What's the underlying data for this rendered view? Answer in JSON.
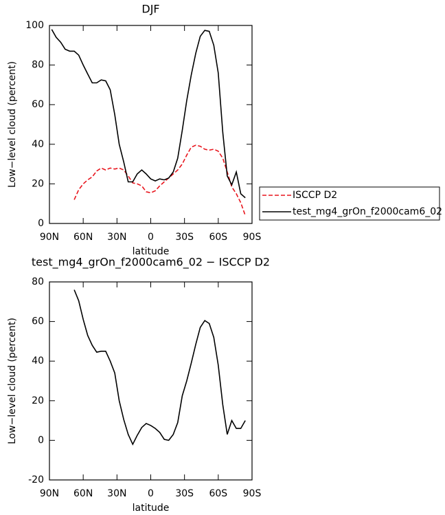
{
  "chart_data": [
    {
      "type": "line",
      "title": "DJF",
      "xlabel": "latitude",
      "ylabel": "Low−level cloud (percent)",
      "x": [
        88,
        84,
        80,
        76,
        72,
        68,
        64,
        60,
        56,
        52,
        48,
        44,
        40,
        36,
        32,
        28,
        24,
        20,
        16,
        12,
        8,
        4,
        0,
        -4,
        -8,
        -12,
        -16,
        -20,
        -24,
        -28,
        -32,
        -36,
        -40,
        -44,
        -48,
        -52,
        -56,
        -60,
        -64,
        -68,
        -72,
        -76,
        -80,
        -84
      ],
      "series": [
        {
          "name": "ISCCP D2",
          "color": "#e8141c",
          "dash": true,
          "values": [
            null,
            null,
            null,
            null,
            null,
            12,
            17,
            20,
            22,
            23.5,
            26.5,
            28,
            27,
            28,
            27.5,
            28,
            27,
            24,
            20.5,
            20,
            19,
            16,
            15.5,
            16.5,
            19,
            21,
            23,
            25,
            27,
            30,
            34.5,
            38.5,
            39.5,
            39,
            37.5,
            37,
            37.5,
            36.5,
            33,
            26,
            18.5,
            15,
            10.5,
            4
          ]
        },
        {
          "name": "test_mg4_grOn_f2000cam6_02",
          "color": "#000000",
          "dash": false,
          "values": [
            98,
            94,
            91.5,
            88,
            87,
            87,
            85,
            80,
            75.5,
            71,
            71,
            72.5,
            72,
            67.5,
            55,
            40,
            31,
            21,
            21,
            25,
            27,
            25,
            22.5,
            21.5,
            22.5,
            22,
            23,
            26,
            33,
            47,
            62,
            75,
            86,
            94.5,
            97.5,
            97,
            90,
            76,
            46,
            24,
            19.5,
            26,
            15,
            13
          ]
        }
      ],
      "xlim": [
        90,
        -90
      ],
      "xticks": [
        {
          "value": 90,
          "label": "90N"
        },
        {
          "value": 60,
          "label": "60N"
        },
        {
          "value": 30,
          "label": "30N"
        },
        0,
        {
          "value": -30,
          "label": "30S"
        },
        {
          "value": -60,
          "label": "60S"
        },
        {
          "value": -90,
          "label": "90S"
        }
      ],
      "ylim": [
        0,
        100
      ],
      "yticks": [
        0,
        20,
        40,
        60,
        80,
        100
      ],
      "legend": "right"
    },
    {
      "type": "line",
      "title": "test_mg4_grOn_f2000cam6_02 − ISCCP D2",
      "xlabel": "latitude",
      "ylabel": "Low−level cloud (percent)",
      "x": [
        88,
        84,
        80,
        76,
        72,
        68,
        64,
        60,
        56,
        52,
        48,
        44,
        40,
        36,
        32,
        28,
        24,
        20,
        16,
        12,
        8,
        4,
        0,
        -4,
        -8,
        -12,
        -16,
        -20,
        -24,
        -28,
        -32,
        -36,
        -40,
        -44,
        -48,
        -52,
        -56,
        -60,
        -64,
        -68,
        -72,
        -76,
        -80,
        -84
      ],
      "series": [
        {
          "color": "#000000",
          "dash": false,
          "values": [
            null,
            null,
            null,
            null,
            null,
            76,
            70.5,
            61,
            53,
            48,
            44.5,
            45,
            45,
            40,
            34,
            20,
            10.5,
            3,
            -2,
            2.5,
            6.5,
            8.5,
            7.5,
            6,
            4,
            0.5,
            0,
            3,
            9,
            22.5,
            30,
            39,
            48.5,
            57,
            60.5,
            59,
            52,
            38,
            18,
            3,
            10,
            6,
            6,
            10
          ]
        }
      ],
      "xlim": [
        90,
        -90
      ],
      "xticks": [
        {
          "value": 90,
          "label": "90N"
        },
        {
          "value": 60,
          "label": "60N"
        },
        {
          "value": 30,
          "label": "30N"
        },
        0,
        {
          "value": -30,
          "label": "30S"
        },
        {
          "value": -60,
          "label": "60S"
        },
        {
          "value": -90,
          "label": "90S"
        }
      ],
      "ylim": [
        -20,
        80
      ],
      "yticks": [
        -20,
        0,
        20,
        40,
        60,
        80
      ]
    }
  ]
}
